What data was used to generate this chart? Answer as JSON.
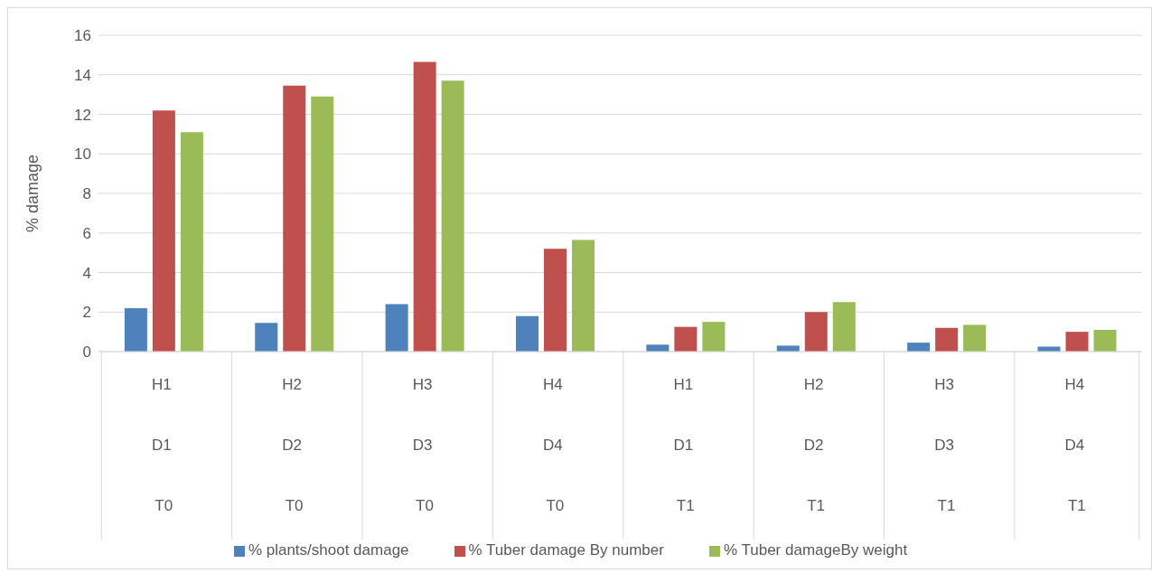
{
  "chart_data": {
    "type": "bar",
    "ylabel": "% damage",
    "categories": [
      "H1\nD1\nT0",
      "H2\nD2\nT0",
      "H3\nD3\nT0",
      "H4\nD4\nT0",
      "H1\nD1\nT1",
      "H2\nD2\nT1",
      "H3\nD3\nT1",
      "H4\nD4\nT1"
    ],
    "series": [
      {
        "name": "% plants/shoot damage",
        "color": "#4f81bd",
        "values": [
          2.2,
          1.45,
          2.4,
          1.8,
          0.35,
          0.3,
          0.45,
          0.25
        ]
      },
      {
        "name": "% Tuber damage By number",
        "color": "#c0504d",
        "values": [
          12.2,
          13.45,
          14.65,
          5.2,
          1.25,
          2.0,
          1.2,
          1.0
        ]
      },
      {
        "name": "% Tuber damageBy weight",
        "color": "#9bbb59",
        "values": [
          11.1,
          12.9,
          13.7,
          5.65,
          1.5,
          2.5,
          1.35,
          1.1
        ]
      }
    ],
    "ylim": [
      0,
      16
    ],
    "yticks": [
      0,
      2,
      4,
      6,
      8,
      10,
      12,
      14,
      16
    ],
    "grid": "y",
    "legend": "bottom"
  }
}
